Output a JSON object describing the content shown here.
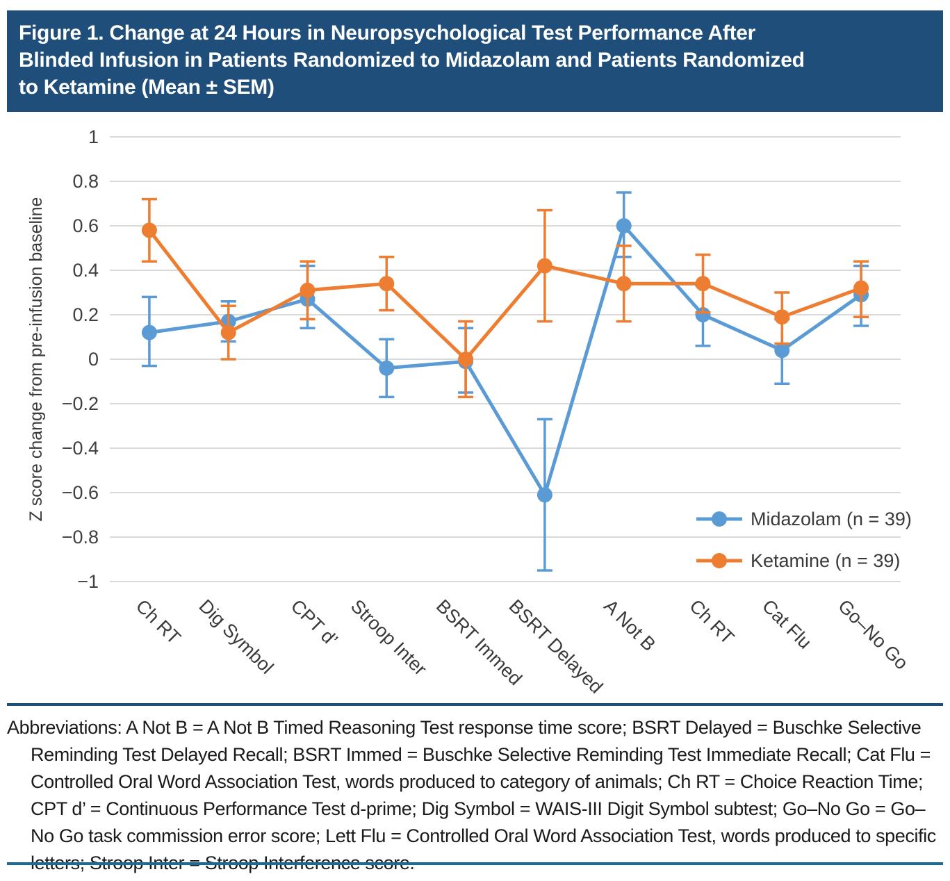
{
  "header": {
    "title": "Figure 1. Change at 24 Hours in Neuropsychological Test Performance After Blinded Infusion in Patients Randomized to Midazolam and Patients Randomized to Ketamine (Mean ± SEM)",
    "title_lines": [
      "Figure 1. Change at 24 Hours in Neuropsychological Test Performance After",
      "Blinded Infusion in Patients Randomized to Midazolam and Patients Randomized",
      "to Ketamine (Mean ± SEM)"
    ]
  },
  "colors": {
    "title_band": "#1E4E79",
    "rule_top": "#1F4E79",
    "rule_bottom": "#1D6A96",
    "gridline": "#D9D9D9",
    "tick_text": "#404040",
    "axis_text": "#3A3A3A",
    "midazolam": "#5B9BD5",
    "ketamine": "#ED7D31"
  },
  "chart_data": {
    "type": "line",
    "title": "",
    "xlabel": "",
    "ylabel": "Z score change from pre-infusion baseline",
    "ylim": [
      -1,
      1
    ],
    "ytick_step": 0.2,
    "grid": "horizontal",
    "legend_position": "inside-right-bottom",
    "error_bars": "SEM",
    "categories": [
      "Ch RT",
      "Dig Symbol",
      "CPT d’",
      "Stroop Inter",
      "BSRT Immed",
      "BSRT Delayed",
      "A Not B",
      "Ch RT",
      "Cat Flu",
      "Go–No Go"
    ],
    "series": [
      {
        "name": "Midazolam (n = 39)",
        "color": "#5B9BD5",
        "values": [
          0.12,
          0.17,
          0.27,
          -0.04,
          -0.01,
          -0.61,
          0.6,
          0.2,
          0.04,
          0.29
        ],
        "err_lo": [
          -0.03,
          0.08,
          0.14,
          -0.17,
          -0.15,
          -0.95,
          0.46,
          0.06,
          -0.11,
          0.15
        ],
        "err_hi": [
          0.28,
          0.26,
          0.42,
          0.09,
          0.14,
          -0.27,
          0.75,
          0.33,
          0.18,
          0.42
        ]
      },
      {
        "name": "Ketamine (n = 39)",
        "color": "#ED7D31",
        "values": [
          0.58,
          0.12,
          0.31,
          0.34,
          0.0,
          0.42,
          0.34,
          0.34,
          0.19,
          0.32
        ],
        "err_lo": [
          0.44,
          0.0,
          0.18,
          0.22,
          -0.17,
          0.17,
          0.17,
          0.21,
          0.07,
          0.19
        ],
        "err_hi": [
          0.72,
          0.24,
          0.44,
          0.46,
          0.17,
          0.67,
          0.51,
          0.47,
          0.3,
          0.44
        ]
      }
    ]
  },
  "footnote": "Abbreviations: A Not B = A Not B Timed Reasoning Test response time score; BSRT Delayed = Buschke Selective Reminding Test Delayed Recall; BSRT Immed = Buschke Selective Reminding Test Immediate Recall; Cat Flu = Controlled Oral Word Association Test, words produced to category of animals; Ch RT = Choice Reaction Time; CPT d’ = Continuous Performance Test d-prime; Dig Symbol = WAIS-III Digit Symbol subtest; Go–No Go = Go–No Go task commission error score; Lett Flu = Controlled Oral Word Association Test, words produced to specific letters; Stroop Inter = Stroop Interference score."
}
